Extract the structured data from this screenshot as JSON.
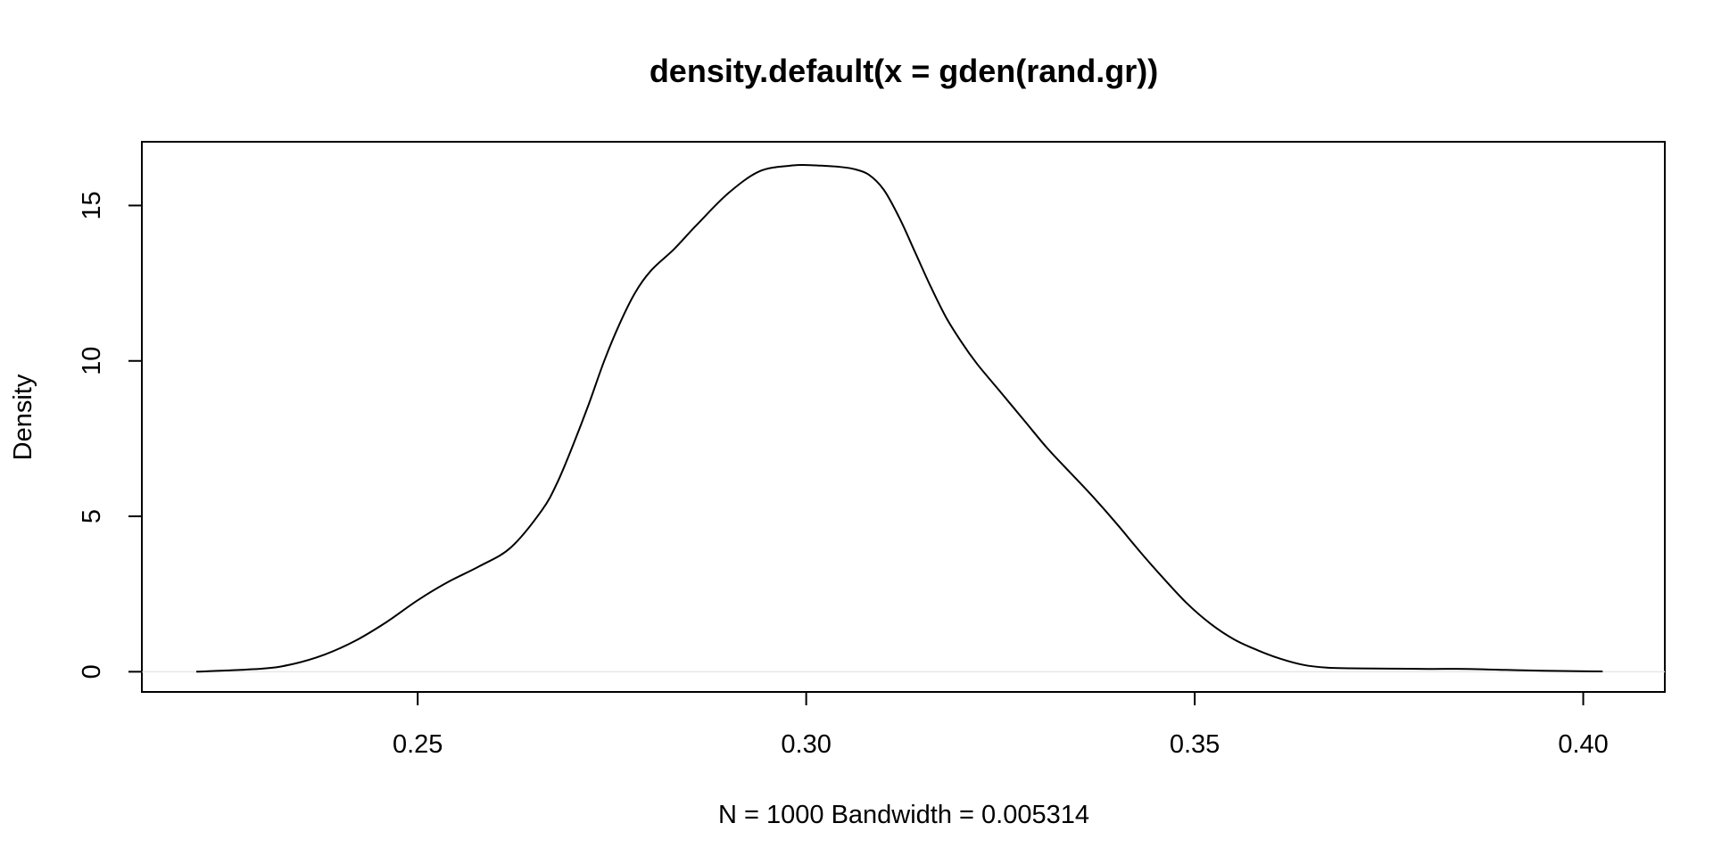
{
  "chart_data": {
    "type": "line",
    "title": "density.default(x = gden(rand.gr))",
    "xlabel": "N = 1000   Bandwidth = 0.005314",
    "ylabel": "Density",
    "xlim": [
      0.2145,
      0.4105
    ],
    "ylim": [
      -0.65,
      17.05
    ],
    "x_ticks": [
      0.25,
      0.3,
      0.35,
      0.4
    ],
    "x_tick_labels": [
      "0.25",
      "0.30",
      "0.35",
      "0.40"
    ],
    "y_ticks": [
      0,
      5,
      10,
      15
    ],
    "y_tick_labels": [
      "0",
      "5",
      "10",
      "15"
    ],
    "grid": false,
    "zero_line": true,
    "series": [
      {
        "color": "#000000",
        "x": [
          0.2215,
          0.23,
          0.234,
          0.238,
          0.242,
          0.246,
          0.25,
          0.254,
          0.258,
          0.262,
          0.266,
          0.268,
          0.27,
          0.272,
          0.274,
          0.276,
          0.278,
          0.28,
          0.283,
          0.286,
          0.29,
          0.294,
          0.298,
          0.3,
          0.302,
          0.304,
          0.306,
          0.308,
          0.31,
          0.312,
          0.314,
          0.316,
          0.318,
          0.32,
          0.322,
          0.325,
          0.328,
          0.331,
          0.334,
          0.337,
          0.34,
          0.343,
          0.346,
          0.349,
          0.352,
          0.355,
          0.358,
          0.361,
          0.364,
          0.367,
          0.37,
          0.375,
          0.38,
          0.385,
          0.39,
          0.395,
          0.4025
        ],
        "y": [
          0.0,
          0.1,
          0.25,
          0.55,
          1.0,
          1.6,
          2.3,
          2.9,
          3.4,
          4.0,
          5.2,
          6.1,
          7.3,
          8.6,
          10.0,
          11.2,
          12.2,
          12.9,
          13.6,
          14.4,
          15.4,
          16.1,
          16.28,
          16.3,
          16.28,
          16.25,
          16.18,
          16.0,
          15.5,
          14.6,
          13.5,
          12.4,
          11.4,
          10.6,
          9.9,
          9.0,
          8.1,
          7.2,
          6.4,
          5.6,
          4.75,
          3.85,
          3.0,
          2.2,
          1.55,
          1.05,
          0.7,
          0.42,
          0.22,
          0.13,
          0.11,
          0.1,
          0.09,
          0.09,
          0.06,
          0.03,
          0.01
        ]
      }
    ]
  }
}
